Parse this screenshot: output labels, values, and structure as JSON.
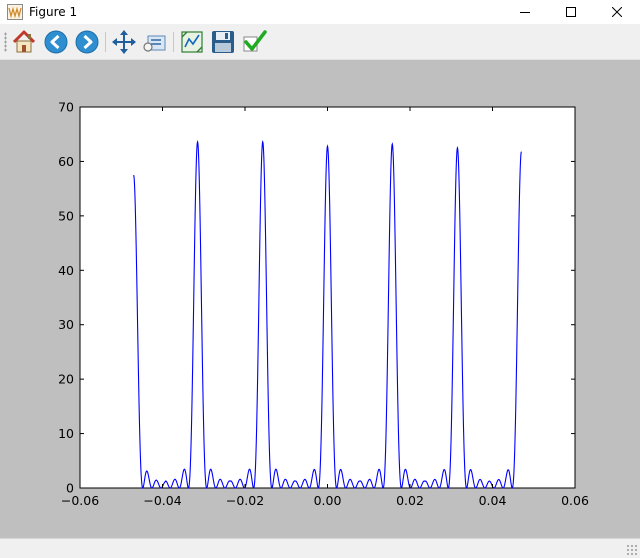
{
  "window": {
    "title": "Figure 1",
    "controls": [
      "minimize-icon",
      "maximize-icon",
      "close-icon"
    ]
  },
  "toolbar": {
    "buttons": [
      {
        "name": "home-button",
        "icon": "home-icon"
      },
      {
        "name": "back-button",
        "icon": "back-arrow-icon"
      },
      {
        "name": "forward-button",
        "icon": "forward-arrow-icon"
      },
      {
        "name": "pan-button",
        "icon": "pan-move-icon"
      },
      {
        "name": "zoom-button",
        "icon": "zoom-rect-icon"
      },
      {
        "name": "subplots-button",
        "icon": "subplots-config-icon"
      },
      {
        "name": "save-button",
        "icon": "save-floppy-icon"
      },
      {
        "name": "edit-button",
        "icon": "checkmark-icon"
      }
    ]
  },
  "colors": {
    "line": "#0000ff",
    "figure_bg": "#bfbfbf",
    "axes_bg": "#ffffff"
  },
  "chart_data": {
    "type": "line",
    "title": "",
    "xlabel": "",
    "ylabel": "",
    "xlim": [
      -0.06,
      0.06
    ],
    "ylim": [
      0,
      70
    ],
    "xticks": [
      -0.06,
      -0.04,
      -0.02,
      0.0,
      0.02,
      0.04,
      0.06
    ],
    "xtick_labels": [
      "−0.06",
      "−0.04",
      "−0.02",
      "0.00",
      "0.02",
      "0.04",
      "0.06"
    ],
    "yticks": [
      0,
      10,
      20,
      30,
      40,
      50,
      60,
      70
    ],
    "ytick_labels": [
      "0",
      "10",
      "20",
      "30",
      "40",
      "50",
      "60",
      "70"
    ],
    "grid": false,
    "legend": "none",
    "series": [
      {
        "x_range": [
          -0.047,
          0.047
        ],
        "peaks": [
          {
            "x": -0.047,
            "y": 57.5
          },
          {
            "x": -0.0315,
            "y": 63.6
          },
          {
            "x": -0.0157,
            "y": 63.6
          },
          {
            "x": 0.0,
            "y": 62.8
          },
          {
            "x": 0.0157,
            "y": 63.2
          },
          {
            "x": 0.0315,
            "y": 62.5
          },
          {
            "x": 0.047,
            "y": 61.8
          }
        ],
        "sidelobe_max": 3.3
      }
    ]
  }
}
